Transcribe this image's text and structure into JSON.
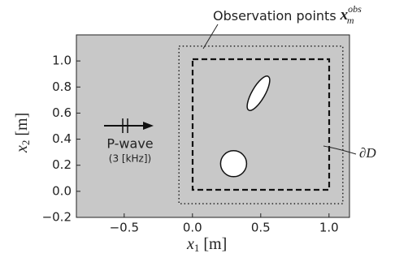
{
  "chart_data": {
    "type": "diagram",
    "title": {
      "text": "Observation points",
      "math": "x",
      "sub": "m",
      "sup": "obs"
    },
    "xlabel": {
      "math": "x",
      "sub": "1",
      "unit": "[m]"
    },
    "ylabel": {
      "math": "x",
      "sub": "2",
      "unit": "[m]"
    },
    "boundary_label": "∂D",
    "wave_label": "P-wave",
    "frequency_label": "(3 [kHz])",
    "xlim": [
      -0.85,
      1.15
    ],
    "ylim": [
      -0.2,
      1.2
    ],
    "xticks": [
      {
        "value": -0.5,
        "label": "−0.5"
      },
      {
        "value": 0,
        "label": "0.0"
      },
      {
        "value": 0.5,
        "label": "0.5"
      },
      {
        "value": 1,
        "label": "1.0"
      }
    ],
    "yticks": [
      {
        "value": -0.2,
        "label": "−0.2"
      },
      {
        "value": 0,
        "label": "0.0"
      },
      {
        "value": 0.2,
        "label": "0.2"
      },
      {
        "value": 0.4,
        "label": "0.4"
      },
      {
        "value": 0.6,
        "label": "0.6"
      },
      {
        "value": 0.8,
        "label": "0.8"
      },
      {
        "value": 1,
        "label": "1.0"
      }
    ],
    "background": "#c8c8c8"
  }
}
